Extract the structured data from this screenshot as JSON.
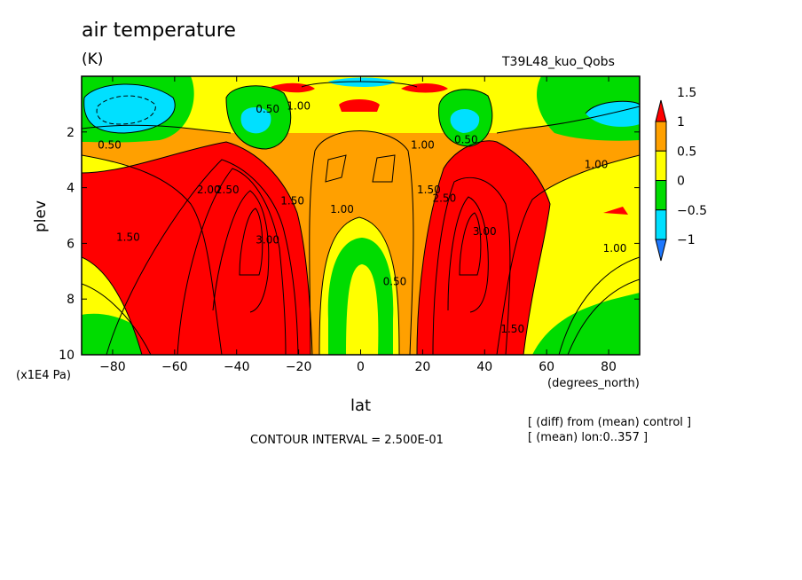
{
  "header": {
    "title": "air temperature",
    "units": "(K)",
    "run": "T39L48_kuo_Qobs"
  },
  "notes": {
    "interval": "CONTOUR INTERVAL = 2.500E-01",
    "diff": "[ (diff) from (mean) control ]",
    "mean": "[ (mean) lon:0..357 ]"
  },
  "chart_data": {
    "type": "heatmap",
    "title": "air temperature",
    "units": "(K)",
    "xlabel": "lat",
    "xunit": "(degrees_north)",
    "ylabel": "plev",
    "yunit": "(x1E4 Pa)",
    "xlim": [
      -90,
      90
    ],
    "ylim": [
      10,
      0
    ],
    "x_ticks": [
      -80,
      -60,
      -40,
      -20,
      0,
      20,
      40,
      60,
      80
    ],
    "x_tick_labels": [
      "−80",
      "−60",
      "−40",
      "−20",
      "0",
      "20",
      "40",
      "60",
      "80"
    ],
    "y_ticks": [
      2,
      4,
      6,
      8,
      10
    ],
    "colorbar": {
      "levels": [
        -1,
        -0.5,
        0,
        0.5,
        1,
        1.5
      ],
      "labels": [
        "−1",
        "−0.5",
        "0",
        "0.5",
        "1",
        "1.5"
      ],
      "colors": [
        "#1e78ff",
        "#00e0ff",
        "#00dc00",
        "#ffff00",
        "#ffa000",
        "#ff0000"
      ]
    },
    "contour_labels": [
      {
        "text": "0.50",
        "lat": -81,
        "plev": 2.6
      },
      {
        "text": "0.50",
        "lat": -30,
        "plev": 1.3
      },
      {
        "text": "1.00",
        "lat": -20,
        "plev": 1.2
      },
      {
        "text": "1.00",
        "lat": 20,
        "plev": 2.6
      },
      {
        "text": "0.50",
        "lat": 34,
        "plev": 2.4
      },
      {
        "text": "1.00",
        "lat": 76,
        "plev": 3.3
      },
      {
        "text": "2.00",
        "lat": -49,
        "plev": 4.2
      },
      {
        "text": "2.50",
        "lat": -43,
        "plev": 4.2
      },
      {
        "text": "1.50",
        "lat": -22,
        "plev": 4.6
      },
      {
        "text": "1.00",
        "lat": -6,
        "plev": 4.9
      },
      {
        "text": "1.50",
        "lat": 22,
        "plev": 4.2
      },
      {
        "text": "2.50",
        "lat": 27,
        "plev": 4.5
      },
      {
        "text": "3.00",
        "lat": -30,
        "plev": 6.0
      },
      {
        "text": "3.00",
        "lat": 40,
        "plev": 5.7
      },
      {
        "text": "1.50",
        "lat": -75,
        "plev": 5.9
      },
      {
        "text": "1.00",
        "lat": 82,
        "plev": 6.3
      },
      {
        "text": "0.50",
        "lat": 11,
        "plev": 7.5
      },
      {
        "text": "1.50",
        "lat": 49,
        "plev": 9.2
      }
    ]
  }
}
